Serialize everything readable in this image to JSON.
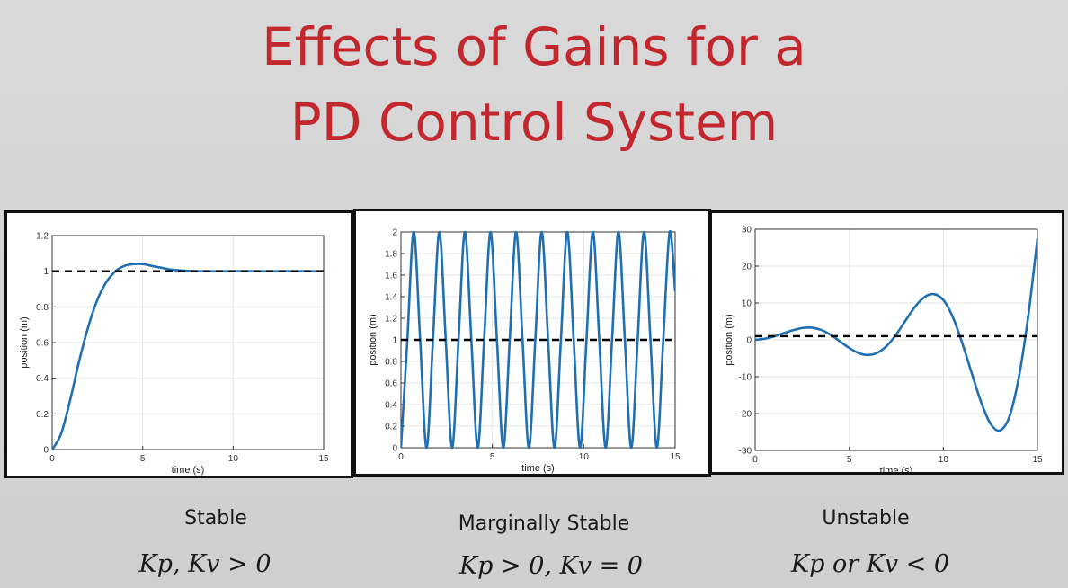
{
  "slide": {
    "title_line1": "Effects of Gains for a",
    "title_line2": "PD Control System"
  },
  "panels": [
    {
      "caption": "Stable",
      "formula": "Kp, Kv  >  0"
    },
    {
      "caption": "Marginally Stable",
      "formula": "Kp >  0,    Kv  = 0"
    },
    {
      "caption": "Unstable",
      "formula": "Kp or Kv  < 0"
    }
  ],
  "colors": {
    "title": "#c1272d",
    "series": "#1f6fb2",
    "reference": "#000000"
  },
  "chart_data": [
    {
      "type": "line",
      "xlabel": "time (s)",
      "ylabel": "position (m)",
      "xlim": [
        0,
        15
      ],
      "ylim": [
        0,
        1.2
      ],
      "xticks": [
        0,
        5,
        10,
        15
      ],
      "yticks": [
        0,
        0.2,
        0.4,
        0.6,
        0.8,
        1,
        1.2
      ],
      "ytick_labels": [
        "0",
        "0.2",
        "0.4",
        "0.6",
        "0.8",
        "1",
        "1.2"
      ],
      "grid": true,
      "series": [
        {
          "style": "solid",
          "x": [
            0,
            0.5,
            1,
            1.5,
            2,
            2.5,
            3,
            3.5,
            4,
            4.5,
            5,
            5.5,
            6,
            6.5,
            7,
            8,
            9,
            10,
            11,
            12,
            13,
            14,
            15
          ],
          "y": [
            0,
            0.09,
            0.28,
            0.5,
            0.69,
            0.84,
            0.94,
            1.0,
            1.03,
            1.04,
            1.04,
            1.03,
            1.02,
            1.01,
            1.005,
            1.0,
            1.0,
            1.0,
            1.0,
            1.0,
            1.0,
            1.0,
            1.0
          ]
        },
        {
          "style": "dashed",
          "x": [
            0,
            15
          ],
          "y": [
            1,
            1
          ]
        }
      ]
    },
    {
      "type": "line",
      "xlabel": "time (s)",
      "ylabel": "position (m)",
      "xlim": [
        0,
        15
      ],
      "ylim": [
        0,
        2
      ],
      "xticks": [
        0,
        5,
        10,
        15
      ],
      "yticks": [
        0,
        0.2,
        0.4,
        0.6,
        0.8,
        1,
        1.2,
        1.4,
        1.6,
        1.8,
        2
      ],
      "ytick_labels": [
        "0",
        "0.2",
        "0.4",
        "0.6",
        "0.8",
        "1",
        "1.2",
        "1.4",
        "1.6",
        "1.8",
        "2"
      ],
      "grid": true,
      "series": [
        {
          "style": "solid",
          "x": [
            0,
            0.35,
            0.7,
            1.05,
            1.4,
            1.75,
            2.1,
            2.45,
            2.8,
            3.15,
            3.5,
            3.85,
            4.2,
            4.55,
            4.9,
            5.25,
            5.6,
            5.95,
            6.3,
            6.65,
            7.0,
            7.35,
            7.7,
            8.05,
            8.4,
            8.75,
            9.1,
            9.45,
            9.8,
            10.15,
            10.5,
            10.85,
            11.2,
            11.55,
            11.9,
            12.25,
            12.6,
            12.95,
            13.3,
            13.65,
            14.0,
            14.35,
            14.7,
            15
          ],
          "y": [
            0,
            1.0,
            2.0,
            1.0,
            0,
            1.0,
            2.0,
            1.0,
            0,
            1.0,
            2.0,
            1.0,
            0,
            1.0,
            2.0,
            1.0,
            0,
            1.0,
            2.0,
            1.0,
            0,
            1.0,
            2.0,
            1.0,
            0,
            1.0,
            2.0,
            1.0,
            0,
            1.0,
            2.0,
            1.0,
            0,
            1.0,
            2.0,
            1.0,
            0,
            1.0,
            2.0,
            1.0,
            0,
            1.0,
            2.0,
            1.45
          ]
        },
        {
          "style": "dashed",
          "x": [
            0,
            15
          ],
          "y": [
            1,
            1
          ]
        }
      ]
    },
    {
      "type": "line",
      "xlabel": "time (s)",
      "ylabel": "position (m)",
      "xlim": [
        0,
        15
      ],
      "ylim": [
        -30,
        30
      ],
      "xticks": [
        0,
        5,
        10,
        15
      ],
      "yticks": [
        -30,
        -20,
        -10,
        0,
        10,
        20,
        30
      ],
      "ytick_labels": [
        "-30",
        "-20",
        "-10",
        "0",
        "10",
        "20",
        "30"
      ],
      "grid": true,
      "series": [
        {
          "style": "solid",
          "x": [
            0,
            0.5,
            1,
            1.5,
            2,
            2.5,
            3,
            3.5,
            4,
            4.5,
            5,
            5.5,
            6,
            6.5,
            7,
            7.5,
            8,
            8.5,
            9,
            9.5,
            10,
            10.5,
            11,
            11.5,
            12,
            12.5,
            13,
            13.5,
            14,
            14.5,
            15
          ],
          "y": [
            0,
            0.3,
            0.9,
            1.8,
            2.6,
            3.2,
            3.3,
            2.7,
            1.4,
            -0.4,
            -2.2,
            -3.6,
            -4.1,
            -3.5,
            -1.6,
            1.5,
            5.3,
            9.0,
            11.6,
            12.4,
            10.8,
            6.2,
            -0.8,
            -8.9,
            -16.8,
            -22.7,
            -24.6,
            -21.0,
            -10.5,
            6.0,
            27.5
          ]
        },
        {
          "style": "dashed",
          "x": [
            0,
            15
          ],
          "y": [
            1,
            1
          ]
        }
      ]
    }
  ]
}
